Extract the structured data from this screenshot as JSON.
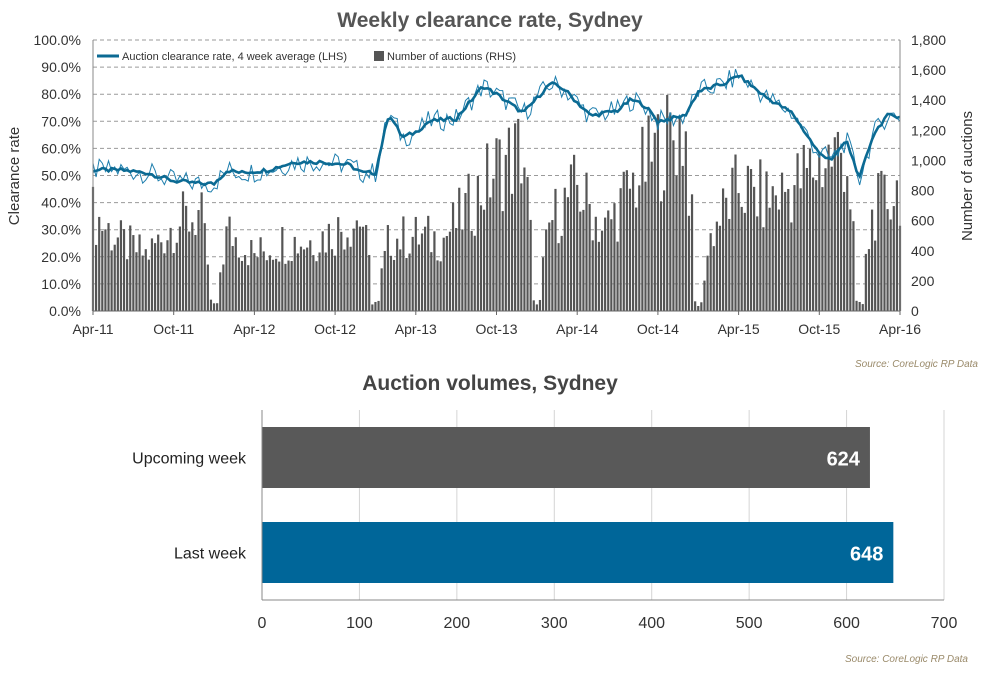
{
  "chart_data": [
    {
      "type": "line+bar",
      "title": "Weekly clearance rate, Sydney",
      "ylabel_left": "Clearance rate",
      "ylabel_right": "Number of auctions",
      "source": "Source: CoreLogic  RP Data",
      "legend": {
        "placement": "top-left",
        "line_label": "Auction clearance rate, 4 week average (LHS)",
        "bar_label": "Number of auctions (RHS)"
      },
      "x_tick_labels": [
        "Apr-11",
        "Oct-11",
        "Apr-12",
        "Oct-12",
        "Apr-13",
        "Oct-13",
        "Apr-14",
        "Oct-14",
        "Apr-15",
        "Oct-15",
        "Apr-16"
      ],
      "y_left_ticks": [
        "0.0%",
        "10.0%",
        "20.0%",
        "30.0%",
        "40.0%",
        "50.0%",
        "60.0%",
        "70.0%",
        "80.0%",
        "90.0%",
        "100.0%"
      ],
      "y_right_ticks": [
        "0",
        "200",
        "400",
        "600",
        "800",
        "1,000",
        "1,200",
        "1,400",
        "1,600",
        "1,800"
      ],
      "ylim_left": [
        0,
        100
      ],
      "ylim_right": [
        0,
        1800
      ],
      "grid": "horizontal dashed",
      "colors": {
        "line": "#0b6a93",
        "line_thin": "#1f7fae",
        "bars": "#555555"
      },
      "x_start": "2011-04",
      "x_end": "2016-04",
      "clearance_4wk_avg_anchors": [
        [
          "2011-04",
          52
        ],
        [
          "2011-06",
          52
        ],
        [
          "2011-08",
          51
        ],
        [
          "2011-10",
          48
        ],
        [
          "2011-12",
          47
        ],
        [
          "2012-01",
          47
        ],
        [
          "2012-02",
          52
        ],
        [
          "2012-03",
          51
        ],
        [
          "2012-05",
          52
        ],
        [
          "2012-07",
          55
        ],
        [
          "2012-09",
          55
        ],
        [
          "2012-11",
          54
        ],
        [
          "2012-12",
          51
        ],
        [
          "2013-01",
          51
        ],
        [
          "2013-02",
          73
        ],
        [
          "2013-03",
          64
        ],
        [
          "2013-04",
          66
        ],
        [
          "2013-05",
          70
        ],
        [
          "2013-07",
          71
        ],
        [
          "2013-09",
          83
        ],
        [
          "2013-10",
          80
        ],
        [
          "2013-12",
          73
        ],
        [
          "2014-02",
          84
        ],
        [
          "2014-03",
          82
        ],
        [
          "2014-05",
          72
        ],
        [
          "2014-07",
          74
        ],
        [
          "2014-08",
          78
        ],
        [
          "2014-09",
          76
        ],
        [
          "2014-10",
          70
        ],
        [
          "2014-12",
          72
        ],
        [
          "2015-01",
          81
        ],
        [
          "2015-03",
          84
        ],
        [
          "2015-04",
          87
        ],
        [
          "2015-06",
          79
        ],
        [
          "2015-08",
          73
        ],
        [
          "2015-10",
          58
        ],
        [
          "2015-11",
          56
        ],
        [
          "2015-12",
          63
        ],
        [
          "2016-01",
          49
        ],
        [
          "2016-02",
          65
        ],
        [
          "2016-03",
          72
        ],
        [
          "2016-04",
          72
        ]
      ],
      "auctions_weekly_envelope": [
        [
          "2011-04",
          780
        ],
        [
          "2011-06",
          560
        ],
        [
          "2011-08",
          450
        ],
        [
          "2011-10",
          700
        ],
        [
          "2011-12",
          780
        ],
        [
          "2012-01",
          40
        ],
        [
          "2012-02",
          650
        ],
        [
          "2012-04",
          450
        ],
        [
          "2012-06",
          560
        ],
        [
          "2012-08",
          560
        ],
        [
          "2012-10",
          640
        ],
        [
          "2012-12",
          760
        ],
        [
          "2013-01",
          40
        ],
        [
          "2013-02",
          580
        ],
        [
          "2013-04",
          600
        ],
        [
          "2013-06",
          580
        ],
        [
          "2013-08",
          850
        ],
        [
          "2013-10",
          1150
        ],
        [
          "2013-12",
          1300
        ],
        [
          "2014-01",
          40
        ],
        [
          "2014-02",
          720
        ],
        [
          "2014-04",
          1000
        ],
        [
          "2014-06",
          640
        ],
        [
          "2014-08",
          1000
        ],
        [
          "2014-10",
          1300
        ],
        [
          "2014-12",
          1500
        ],
        [
          "2015-01",
          40
        ],
        [
          "2015-02",
          640
        ],
        [
          "2015-04",
          1000
        ],
        [
          "2015-06",
          900
        ],
        [
          "2015-08",
          1000
        ],
        [
          "2015-10",
          1200
        ],
        [
          "2015-12",
          1300
        ],
        [
          "2016-01",
          40
        ],
        [
          "2016-02",
          800
        ],
        [
          "2016-04",
          1000
        ]
      ]
    },
    {
      "type": "bar",
      "orientation": "horizontal",
      "title": "Auction volumes, Sydney",
      "source": "Source: CoreLogic  RP Data",
      "categories": [
        "Upcoming week",
        "Last week"
      ],
      "values": [
        624,
        648
      ],
      "value_labels": [
        "624",
        "648"
      ],
      "colors": [
        "#595959",
        "#006699"
      ],
      "xlim": [
        0,
        700
      ],
      "x_ticks": [
        "0",
        "100",
        "200",
        "300",
        "400",
        "500",
        "600",
        "700"
      ],
      "grid": "vertical"
    }
  ]
}
